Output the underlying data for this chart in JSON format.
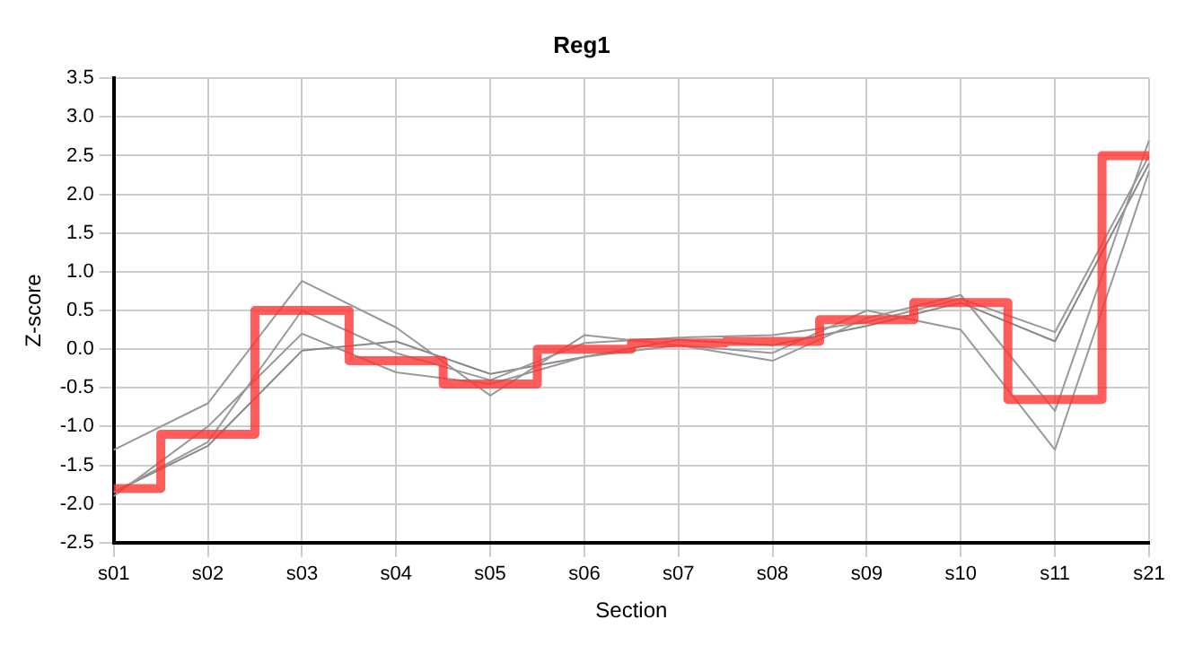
{
  "chart_data": {
    "type": "line",
    "title": "Reg1",
    "xlabel": "Section",
    "ylabel": "Z-score",
    "categories": [
      "s01",
      "s02",
      "s03",
      "s04",
      "s05",
      "s06",
      "s07",
      "s08",
      "s09",
      "s10",
      "s11",
      "s21"
    ],
    "ylim": [
      -2.5,
      3.5
    ],
    "yticks": [
      {
        "value": -2.5,
        "label": "-2.5"
      },
      {
        "value": -2,
        "label": "-2.0"
      },
      {
        "value": -1.5,
        "label": "-1.5"
      },
      {
        "value": -1,
        "label": "-1.0"
      },
      {
        "value": -0.5,
        "label": "-0.5"
      },
      {
        "value": 0,
        "label": "0.0"
      },
      {
        "value": 0.5,
        "label": "0.5"
      },
      {
        "value": 1,
        "label": "1.0"
      },
      {
        "value": 1.5,
        "label": "1.5"
      },
      {
        "value": 2,
        "label": "2.0"
      },
      {
        "value": 2.5,
        "label": "2.5"
      },
      {
        "value": 3,
        "label": "3.0"
      },
      {
        "value": 3.5,
        "label": "3.5"
      }
    ],
    "grid": true,
    "legend": false,
    "marker": "none",
    "series": [
      {
        "color": "#999999",
        "values": [
          -1.3,
          -0.7,
          0.88,
          0.28,
          -0.6,
          0.18,
          0.05,
          -0.05,
          0.5,
          0.25,
          -1.3,
          2.3
        ]
      },
      {
        "color": "#999999",
        "values": [
          -1.85,
          -1.2,
          0.5,
          -0.05,
          -0.4,
          0.08,
          0.15,
          0.18,
          0.35,
          0.65,
          0.22,
          2.5
        ]
      },
      {
        "color": "#999999",
        "values": [
          -1.9,
          -1.0,
          0.2,
          -0.3,
          -0.45,
          -0.1,
          0.05,
          -0.15,
          0.4,
          0.7,
          -0.8,
          2.7
        ]
      },
      {
        "color": "#888888",
        "values": [
          -1.85,
          -1.25,
          -0.02,
          0.1,
          -0.32,
          -0.1,
          0.12,
          0.05,
          0.3,
          0.6,
          0.1,
          2.4
        ]
      },
      {
        "type": "step",
        "color": "#ff3333",
        "values": [
          -1.8,
          -1.1,
          0.5,
          -0.15,
          -0.45,
          0.0,
          0.08,
          0.1,
          0.38,
          0.6,
          -0.65,
          2.5
        ]
      }
    ]
  }
}
